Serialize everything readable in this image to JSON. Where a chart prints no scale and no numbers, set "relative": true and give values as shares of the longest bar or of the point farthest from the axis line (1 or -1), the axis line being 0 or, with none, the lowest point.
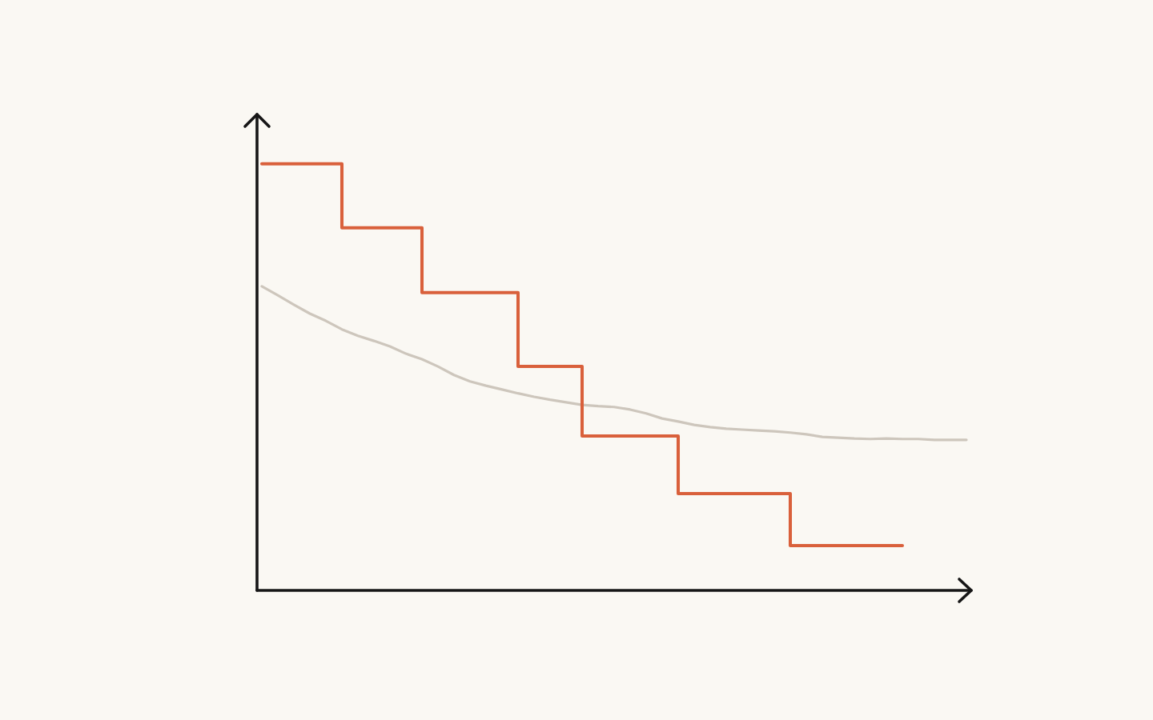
{
  "chart_data": {
    "type": "step",
    "relative": true,
    "line_style": "solid",
    "categories": [
      null,
      null,
      null,
      null,
      null,
      null,
      null,
      null,
      null,
      null,
      null,
      null,
      null,
      null,
      null,
      null,
      null,
      null,
      null,
      null,
      null,
      null,
      null,
      null,
      null,
      null,
      null,
      null,
      null,
      null,
      null,
      null,
      null,
      null,
      null,
      null,
      null,
      null,
      null,
      null,
      null,
      null,
      null,
      null,
      null
    ],
    "series": [
      {
        "type": "line",
        "color": "#cdc6bc",
        "values": [
          0.713,
          0.692,
          0.67,
          0.649,
          0.632,
          0.612,
          0.597,
          0.585,
          0.572,
          0.555,
          0.542,
          0.525,
          0.505,
          0.49,
          0.48,
          0.471,
          0.462,
          0.454,
          0.447,
          0.441,
          0.435,
          0.432,
          0.43,
          0.424,
          0.415,
          0.403,
          0.396,
          0.388,
          0.383,
          0.379,
          0.377,
          0.375,
          0.373,
          0.37,
          0.366,
          0.36,
          0.358,
          0.356,
          0.355,
          0.356,
          0.355,
          0.355,
          0.353,
          0.353,
          0.353
        ]
      },
      {
        "color": "#d9603b",
        "values": [
          1.0,
          1.0,
          1.0,
          1.0,
          1.0,
          0.85,
          0.85,
          0.85,
          0.85,
          0.85,
          0.698,
          0.698,
          0.698,
          0.698,
          0.698,
          0.698,
          0.525,
          0.525,
          0.525,
          0.525,
          0.362,
          0.362,
          0.362,
          0.362,
          0.362,
          0.362,
          0.227,
          0.227,
          0.227,
          0.227,
          0.227,
          0.227,
          0.227,
          0.105,
          0.105,
          0.105,
          0.105,
          0.105,
          0.105,
          0.105,
          0.105,
          null,
          null,
          null,
          null
        ]
      }
    ]
  }
}
